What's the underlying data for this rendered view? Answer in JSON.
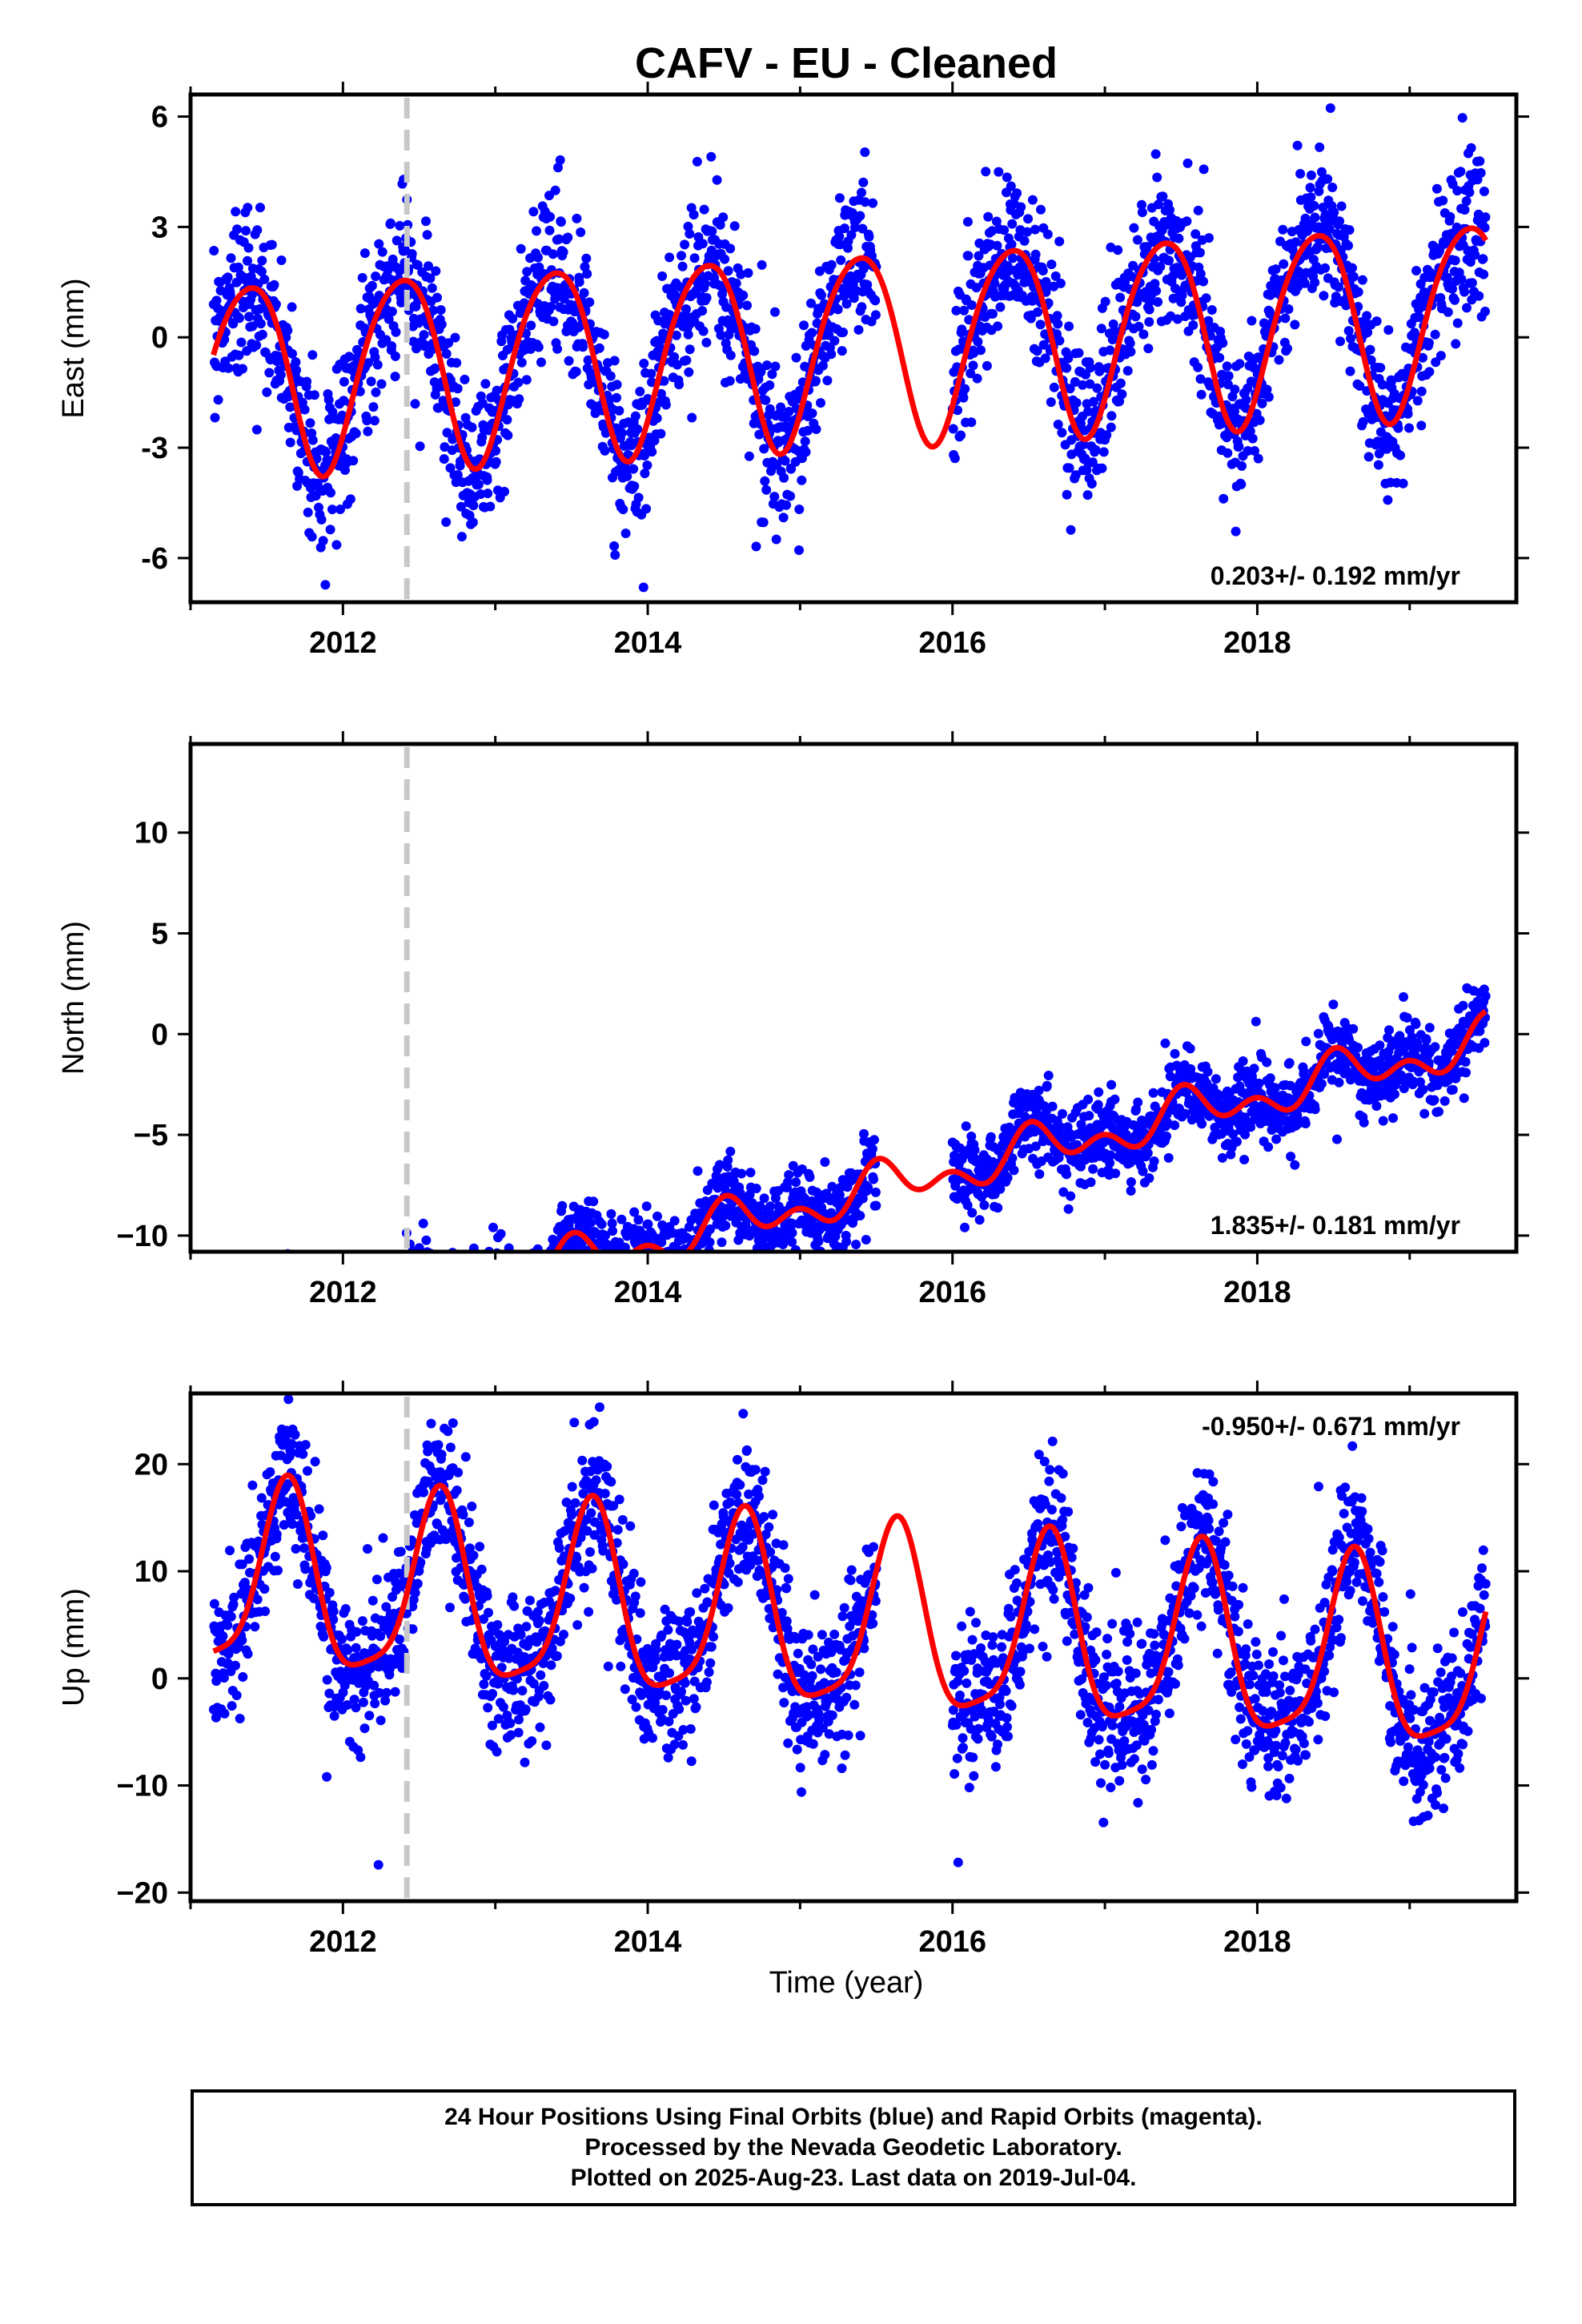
{
  "figure": {
    "title": "CAFV  - EU - Cleaned",
    "x_axis_label": "Time (year)"
  },
  "footer": {
    "line1": "24 Hour Positions Using Final Orbits (blue) and Rapid Orbits (magenta).",
    "line2": "Processed by the Nevada Geodetic Laboratory.",
    "line3": "Plotted on 2025-Aug-23. Last data on 2019-Jul-04."
  },
  "colors": {
    "final_orbits": "#0000ff",
    "rapid_orbits": "#ff00ff",
    "model": "#ff0000",
    "event_line": "#c8c8c8"
  },
  "chart_data": [
    {
      "type": "scatter",
      "component": "East",
      "ylabel": "East (mm)",
      "xlim": [
        2011.0,
        2019.7
      ],
      "ylim": [
        -7.2,
        6.6
      ],
      "yticks": [
        -6,
        -3,
        0,
        3,
        6
      ],
      "yticklabels": [
        "-6",
        "-3",
        "0",
        "3",
        "6"
      ],
      "xticks": [
        2012,
        2014,
        2016,
        2018
      ],
      "xticklabels": [
        "2012",
        "2014",
        "2016",
        "2018"
      ],
      "event_line_x": 2012.42,
      "rate_text": "0.203+/- 0.192 mm/yr",
      "rate_position": "bottom-right",
      "data_span": [
        2011.15,
        2019.5
      ],
      "data_gap": [
        2015.5,
        2016.0
      ],
      "model": {
        "trend_mm_per_yr": 0.203,
        "offset_mm": -0.2,
        "annual_amplitude_mm": 2.6,
        "annual_peak_year_fraction": 0.38,
        "semiannual_amplitude_mm": 0.3,
        "semiannual_peak_year_fraction": 0.1
      },
      "scatter_noise_sd_mm": 1.05,
      "point_count": 2650
    },
    {
      "type": "scatter",
      "component": "North",
      "ylabel": "North (mm)",
      "xlim": [
        2011.0,
        2019.7
      ],
      "ylim": [
        -10.8,
        14.4
      ],
      "yticks": [
        -10,
        -5,
        0,
        5,
        10
      ],
      "yticklabels": [
        "−10",
        "−5",
        "0",
        "5",
        "10"
      ],
      "xticks": [
        2012,
        2014,
        2016,
        2018
      ],
      "xticklabels": [
        "2012",
        "2014",
        "2016",
        "2018"
      ],
      "event_line_x": 2012.42,
      "rate_text": "1.835+/- 0.181 mm/yr",
      "rate_position": "bottom-right",
      "data_span": [
        2011.15,
        2019.5
      ],
      "data_gap": [
        2015.5,
        2016.0
      ],
      "model": {
        "trend_mm_per_yr": 1.835,
        "offset_mm": -8.0,
        "annual_amplitude_mm": 0.8,
        "annual_peak_year_fraction": 0.55,
        "semiannual_amplitude_mm": 0.7,
        "semiannual_peak_year_fraction": 0.0
      },
      "scatter_noise_sd_mm": 0.95,
      "point_count": 2650
    },
    {
      "type": "scatter",
      "component": "Up",
      "ylabel": "Up (mm)",
      "xlim": [
        2011.0,
        2019.7
      ],
      "ylim": [
        -20.8,
        26.6
      ],
      "yticks": [
        -20,
        -10,
        0,
        10,
        20
      ],
      "yticklabels": [
        "−20",
        "−10",
        "0",
        "10",
        "20"
      ],
      "xticks": [
        2012,
        2014,
        2016,
        2018
      ],
      "xticklabels": [
        "2012",
        "2014",
        "2016",
        "2018"
      ],
      "event_line_x": 2012.42,
      "rate_text": "-0.950+/- 0.671 mm/yr",
      "rate_position": "top-right",
      "data_span": [
        2011.15,
        2019.5
      ],
      "data_gap": [
        2015.5,
        2016.0
      ],
      "model": {
        "trend_mm_per_yr": -0.95,
        "offset_mm": 5.0,
        "annual_amplitude_mm": 8.5,
        "annual_peak_year_fraction": 0.63,
        "semiannual_amplitude_mm": 2.0,
        "semiannual_peak_year_fraction": 0.15
      },
      "scatter_noise_sd_mm": 3.6,
      "point_count": 2650
    }
  ]
}
